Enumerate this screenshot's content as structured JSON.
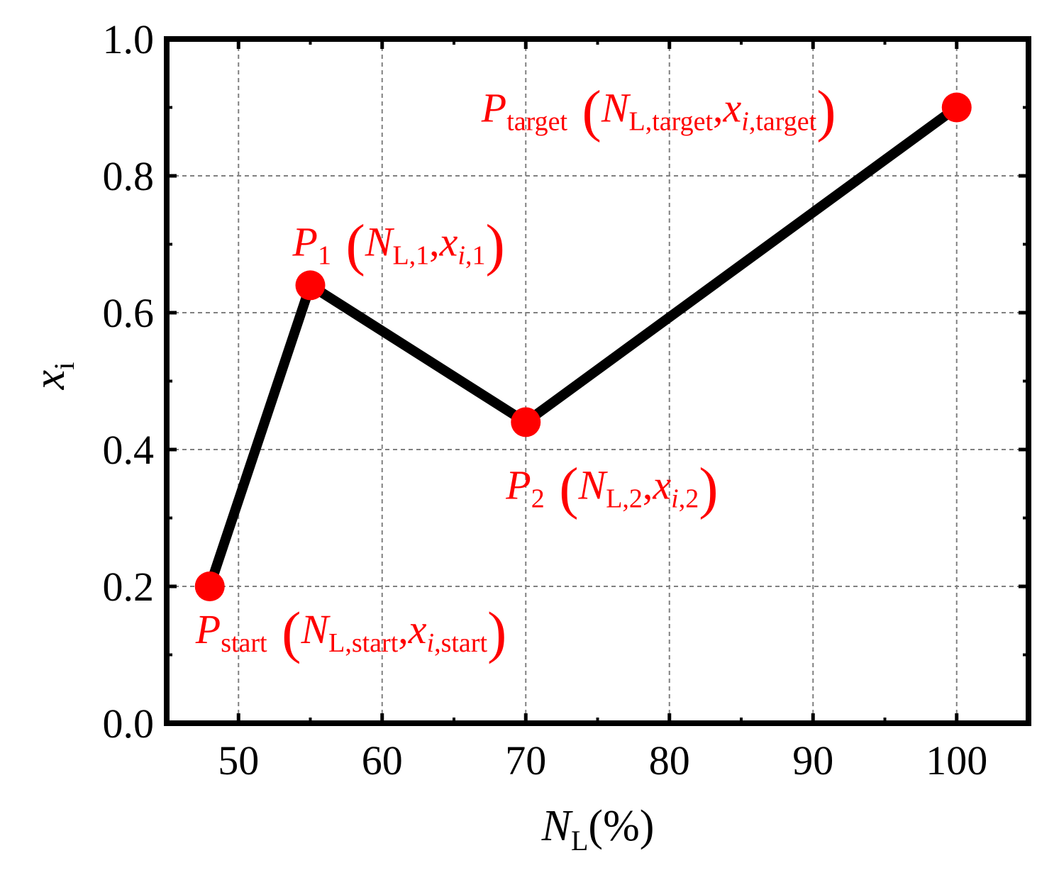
{
  "chart_data": {
    "type": "line",
    "title": "",
    "xlabel": {
      "main": "N",
      "sub": "L",
      "suffix": "(%)"
    },
    "ylabel": {
      "main": "x",
      "sub": "i"
    },
    "xlim": [
      45,
      105
    ],
    "ylim": [
      0.0,
      1.0
    ],
    "xticks": [
      50,
      60,
      70,
      80,
      90,
      100
    ],
    "xtick_labels": [
      "50",
      "60",
      "70",
      "80",
      "90",
      "100"
    ],
    "yticks": [
      0.0,
      0.2,
      0.4,
      0.6,
      0.8,
      1.0
    ],
    "ytick_labels": [
      "0.0",
      "0.2",
      "0.4",
      "0.6",
      "0.8",
      "1.0"
    ],
    "grid": true,
    "line_color": "#000000",
    "marker_color": "#ff0000",
    "annotation_color": "#ff0000",
    "series": [
      {
        "x": [
          48,
          55,
          70,
          100
        ],
        "y": [
          0.2,
          0.64,
          0.44,
          0.9
        ]
      }
    ],
    "annotations": [
      {
        "point": "P",
        "point_sub": "start",
        "n": "N",
        "n_sub": "L,start",
        "x": "x",
        "x_sub_italic": "i",
        "x_sub": ",start",
        "sep": ",",
        "open": "(",
        "close": ")"
      },
      {
        "point": "P",
        "point_sub": "1",
        "n": "N",
        "n_sub": "L,1",
        "x": "x",
        "x_sub_italic": "i",
        "x_sub": ",1",
        "sep": ",",
        "open": "(",
        "close": ")"
      },
      {
        "point": "P",
        "point_sub": "2",
        "n": "N",
        "n_sub": "L,2",
        "x": "x",
        "x_sub_italic": "i",
        "x_sub": ",2",
        "sep": ",",
        "open": "(",
        "close": ")"
      },
      {
        "point": "P",
        "point_sub": "target",
        "n": "N",
        "n_sub": "L,target",
        "x": "x",
        "x_sub_italic": "i",
        "x_sub": ",target",
        "sep": ",",
        "open": "(",
        "close": ")"
      }
    ]
  }
}
